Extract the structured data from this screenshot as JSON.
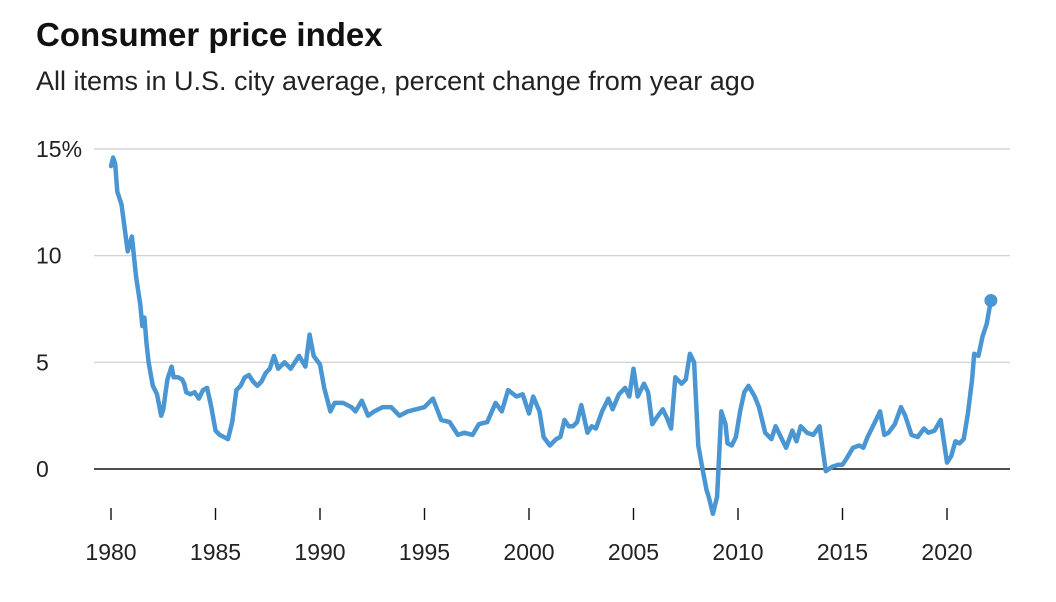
{
  "chart_data": {
    "type": "line",
    "title": "Consumer price index",
    "subtitle": "All items in U.S. city average, percent change from year ago",
    "xlabel": "",
    "ylabel": "",
    "xlim": [
      1980,
      2022.9
    ],
    "ylim": [
      -2,
      15
    ],
    "y_ticks": [
      {
        "value": 15,
        "label": "15%"
      },
      {
        "value": 10,
        "label": "10"
      },
      {
        "value": 5,
        "label": "5"
      },
      {
        "value": 0,
        "label": "0"
      }
    ],
    "x_ticks": [
      {
        "value": 1980,
        "label": "1980"
      },
      {
        "value": 1985,
        "label": "1985"
      },
      {
        "value": 1990,
        "label": "1990"
      },
      {
        "value": 1995,
        "label": "1995"
      },
      {
        "value": 2000,
        "label": "2000"
      },
      {
        "value": 2005,
        "label": "2005"
      },
      {
        "value": 2010,
        "label": "2010"
      },
      {
        "value": 2015,
        "label": "2015"
      },
      {
        "value": 2020,
        "label": "2020"
      }
    ],
    "grid": true,
    "line_color": "#4a96d2",
    "series": [
      {
        "x": [
          1980.0,
          1980.1,
          1980.2,
          1980.3,
          1980.4,
          1980.5,
          1980.6,
          1980.8,
          1981.0,
          1981.2,
          1981.4,
          1981.5,
          1981.6,
          1981.7,
          1981.8,
          1982.0,
          1982.2,
          1982.4,
          1982.5,
          1982.6,
          1982.7,
          1982.9,
          1983.0,
          1983.2,
          1983.4,
          1983.5,
          1983.6,
          1983.8,
          1984.0,
          1984.2,
          1984.4,
          1984.6,
          1984.8,
          1985.0,
          1985.2,
          1985.4,
          1985.6,
          1985.8,
          1986.0,
          1986.2,
          1986.4,
          1986.6,
          1986.8,
          1987.0,
          1987.2,
          1987.4,
          1987.6,
          1987.8,
          1988.0,
          1988.3,
          1988.6,
          1989.0,
          1989.3,
          1989.5,
          1989.7,
          1990.0,
          1990.2,
          1990.5,
          1990.7,
          1990.9,
          1991.1,
          1991.3,
          1991.5,
          1991.7,
          1992.0,
          1992.3,
          1992.6,
          1993.0,
          1993.4,
          1993.8,
          1994.2,
          1994.6,
          1995.0,
          1995.4,
          1995.8,
          1996.2,
          1996.6,
          1996.9,
          1997.3,
          1997.6,
          1998.0,
          1998.4,
          1998.7,
          1999.0,
          1999.4,
          1999.7,
          2000.0,
          2000.2,
          2000.5,
          2000.7,
          2001.0,
          2001.3,
          2001.5,
          2001.7,
          2001.9,
          2002.1,
          2002.3,
          2002.5,
          2002.8,
          2003.0,
          2003.2,
          2003.5,
          2003.8,
          2004.0,
          2004.3,
          2004.6,
          2004.8,
          2005.0,
          2005.2,
          2005.5,
          2005.7,
          2005.9,
          2006.1,
          2006.4,
          2006.6,
          2006.8,
          2007.0,
          2007.3,
          2007.5,
          2007.7,
          2007.9,
          2008.1,
          2008.3,
          2008.5,
          2008.6,
          2008.8,
          2009.0,
          2009.2,
          2009.4,
          2009.5,
          2009.7,
          2009.9,
          2010.1,
          2010.3,
          2010.5,
          2010.8,
          2011.0,
          2011.3,
          2011.6,
          2011.8,
          2012.0,
          2012.3,
          2012.6,
          2012.8,
          2013.0,
          2013.3,
          2013.6,
          2013.9,
          2014.2,
          2014.5,
          2014.8,
          2015.0,
          2015.2,
          2015.5,
          2015.8,
          2016.0,
          2016.2,
          2016.5,
          2016.8,
          2017.0,
          2017.2,
          2017.5,
          2017.8,
          2018.0,
          2018.3,
          2018.6,
          2018.9,
          2019.1,
          2019.4,
          2019.7,
          2020.0,
          2020.2,
          2020.4,
          2020.6,
          2020.8,
          2021.0,
          2021.2,
          2021.3,
          2021.5,
          2021.7,
          2021.9,
          2022.1
        ],
        "y": [
          14.2,
          14.6,
          14.3,
          13.0,
          12.7,
          12.4,
          11.7,
          10.2,
          10.9,
          9.0,
          7.7,
          6.7,
          7.1,
          5.9,
          5.0,
          3.9,
          3.5,
          2.5,
          2.8,
          3.5,
          4.2,
          4.8,
          4.3,
          4.3,
          4.2,
          4.0,
          3.6,
          3.5,
          3.6,
          3.3,
          3.7,
          3.8,
          2.9,
          1.8,
          1.6,
          1.5,
          1.4,
          2.2,
          3.7,
          3.9,
          4.3,
          4.4,
          4.1,
          3.9,
          4.1,
          4.5,
          4.7,
          5.3,
          4.7,
          5.0,
          4.7,
          5.3,
          4.8,
          6.3,
          5.3,
          4.9,
          3.8,
          2.7,
          3.1,
          3.1,
          3.1,
          3.0,
          2.9,
          2.7,
          3.2,
          2.5,
          2.7,
          2.9,
          2.9,
          2.5,
          2.7,
          2.8,
          2.9,
          3.3,
          2.3,
          2.2,
          1.6,
          1.7,
          1.6,
          2.1,
          2.2,
          3.1,
          2.7,
          3.7,
          3.4,
          3.5,
          2.6,
          3.4,
          2.7,
          1.5,
          1.1,
          1.4,
          1.5,
          2.3,
          2.0,
          2.0,
          2.2,
          3.0,
          1.7,
          2.0,
          1.9,
          2.7,
          3.3,
          2.8,
          3.5,
          3.8,
          3.4,
          4.7,
          3.4,
          4.0,
          3.6,
          2.1,
          2.4,
          2.8,
          2.4,
          1.9,
          4.3,
          4.0,
          4.2,
          5.4,
          5.0,
          1.1,
          0.0,
          -1.0,
          -1.3,
          -2.1,
          -1.3,
          2.7,
          2.1,
          1.2,
          1.1,
          1.5,
          2.7,
          3.6,
          3.9,
          3.4,
          2.9,
          1.7,
          1.4,
          2.0,
          1.6,
          1.0,
          1.8,
          1.3,
          2.0,
          1.7,
          1.6,
          2.0,
          -0.1,
          0.1,
          0.2,
          0.2,
          0.5,
          1.0,
          1.1,
          1.0,
          1.5,
          2.1,
          2.7,
          1.6,
          1.7,
          2.1,
          2.9,
          2.5,
          1.6,
          1.5,
          1.9,
          1.7,
          1.8,
          2.3,
          0.3,
          0.6,
          1.3,
          1.2,
          1.4,
          2.6,
          4.2,
          5.4,
          5.3,
          6.2,
          6.8,
          7.9
        ]
      }
    ],
    "end_marker": {
      "x": 2022.1,
      "y": 7.9
    }
  }
}
